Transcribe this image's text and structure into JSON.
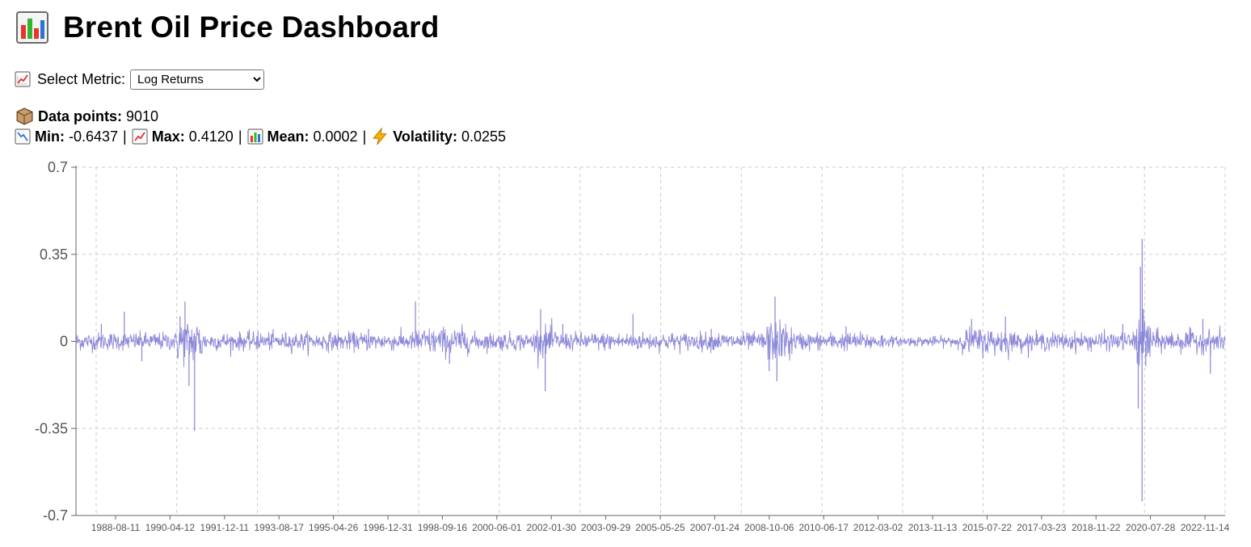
{
  "header": {
    "title": "Brent Oil Price Dashboard",
    "title_icon": "bar-chart-icon"
  },
  "controls": {
    "metric_label": "Select Metric:",
    "metric_icon": "trending-up-icon",
    "selected_metric": "Log Returns",
    "options": [
      "Log Returns"
    ]
  },
  "stats": {
    "data_points_label": "Data points:",
    "data_points": "9010",
    "min_label": "Min:",
    "min": "-0.6437",
    "max_label": "Max:",
    "max": "0.4120",
    "mean_label": "Mean:",
    "mean": "0.0002",
    "volatility_label": "Volatility:",
    "volatility": "0.0255",
    "separator": "|"
  },
  "colors": {
    "series": "#8884d8",
    "grid": "#cccccc",
    "axis": "#666666"
  },
  "chart_data": {
    "type": "line",
    "title": "",
    "xlabel": "",
    "ylabel": "",
    "ylim": [
      -0.7,
      0.7
    ],
    "yticks": [
      "0.7",
      "0.35",
      "0",
      "-0.35",
      "-0.7"
    ],
    "x_range": [
      "1987-05-20",
      "2022-11-14"
    ],
    "xticks": [
      "1988-08-11",
      "1990-04-12",
      "1991-12-11",
      "1993-08-17",
      "1995-04-26",
      "1996-12-31",
      "1998-09-16",
      "2000-06-01",
      "2002-01-30",
      "2003-09-29",
      "2005-05-25",
      "2007-01-24",
      "2008-10-06",
      "2010-06-17",
      "2012-03-02",
      "2013-11-13",
      "2015-07-22",
      "2017-03-23",
      "2018-11-22",
      "2020-07-28",
      "2022-11-14"
    ],
    "grid": true,
    "legend": "none",
    "series": [
      {
        "values_summary": "daily log returns, 9010 points",
        "points": [
          {
            "x": "1987-05-20",
            "y": 0.0
          },
          {
            "x": "1988-03-01",
            "y": 0.07
          },
          {
            "x": "1988-11-15",
            "y": 0.12
          },
          {
            "x": "1989-06-01",
            "y": -0.08
          },
          {
            "x": "1990-08-06",
            "y": 0.1
          },
          {
            "x": "1990-10-01",
            "y": 0.16
          },
          {
            "x": "1990-11-15",
            "y": -0.18
          },
          {
            "x": "1991-01-17",
            "y": -0.36
          },
          {
            "x": "1993-01-01",
            "y": 0.04
          },
          {
            "x": "1996-06-01",
            "y": 0.05
          },
          {
            "x": "1997-11-12",
            "y": 0.16
          },
          {
            "x": "1998-12-01",
            "y": -0.09
          },
          {
            "x": "2001-09-24",
            "y": 0.13
          },
          {
            "x": "2001-11-15",
            "y": -0.2
          },
          {
            "x": "2002-06-01",
            "y": 0.07
          },
          {
            "x": "2004-08-01",
            "y": 0.11
          },
          {
            "x": "2007-01-01",
            "y": 0.05
          },
          {
            "x": "2008-10-15",
            "y": -0.12
          },
          {
            "x": "2008-12-20",
            "y": 0.18
          },
          {
            "x": "2009-01-10",
            "y": -0.16
          },
          {
            "x": "2011-03-01",
            "y": 0.06
          },
          {
            "x": "2015-01-15",
            "y": 0.09
          },
          {
            "x": "2016-02-01",
            "y": 0.1
          },
          {
            "x": "2019-09-16",
            "y": 0.07
          },
          {
            "x": "2020-03-09",
            "y": -0.27
          },
          {
            "x": "2020-04-02",
            "y": 0.3
          },
          {
            "x": "2020-04-21",
            "y": -0.6437
          },
          {
            "x": "2020-04-22",
            "y": 0.412
          },
          {
            "x": "2020-05-05",
            "y": 0.13
          },
          {
            "x": "2020-06-01",
            "y": -0.1
          },
          {
            "x": "2022-03-08",
            "y": 0.09
          },
          {
            "x": "2022-06-01",
            "y": -0.13
          },
          {
            "x": "2022-11-14",
            "y": 0.0
          }
        ]
      }
    ]
  }
}
